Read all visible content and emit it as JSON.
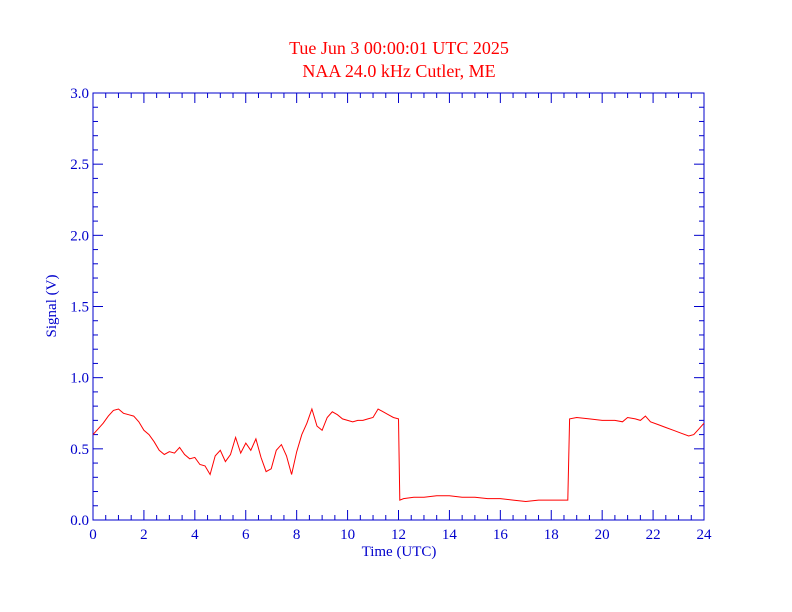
{
  "chart_data": {
    "type": "line",
    "title": "Tue Jun 3 00:00:01 UTC 2025",
    "subtitle": "NAA 24.0 kHz Cutler, ME",
    "xlabel": "Time (UTC)",
    "ylabel": "Signal (V)",
    "xlim": [
      0,
      24
    ],
    "ylim": [
      0,
      3.0
    ],
    "x_ticks": [
      0,
      2,
      4,
      6,
      8,
      10,
      12,
      14,
      16,
      18,
      20,
      22,
      24
    ],
    "x_tick_labels": [
      "0",
      "2",
      "4",
      "6",
      "8",
      "10",
      "12",
      "14",
      "16",
      "18",
      "20",
      "22",
      "24"
    ],
    "y_ticks": [
      0,
      0.5,
      1.0,
      1.5,
      2.0,
      2.5,
      3.0
    ],
    "y_tick_labels": [
      "0.0",
      "0.5",
      "1.0",
      "1.5",
      "2.0",
      "2.5",
      "3.0"
    ],
    "grid": false,
    "series": [
      {
        "color": "#ff0000",
        "x": [
          0.0,
          0.2,
          0.4,
          0.6,
          0.8,
          1.0,
          1.2,
          1.4,
          1.6,
          1.8,
          2.0,
          2.2,
          2.4,
          2.6,
          2.8,
          3.0,
          3.2,
          3.4,
          3.6,
          3.8,
          4.0,
          4.2,
          4.4,
          4.6,
          4.8,
          5.0,
          5.2,
          5.4,
          5.6,
          5.8,
          6.0,
          6.2,
          6.4,
          6.6,
          6.8,
          7.0,
          7.2,
          7.4,
          7.6,
          7.8,
          8.0,
          8.2,
          8.4,
          8.6,
          8.8,
          9.0,
          9.2,
          9.4,
          9.6,
          9.8,
          10.0,
          10.2,
          10.4,
          10.6,
          10.8,
          11.0,
          11.2,
          11.4,
          11.6,
          11.8,
          12.0,
          12.05,
          12.2,
          12.6,
          13.0,
          13.5,
          14.0,
          14.5,
          15.0,
          15.5,
          16.0,
          16.5,
          17.0,
          17.5,
          18.0,
          18.5,
          18.65,
          18.72,
          19.0,
          19.5,
          20.0,
          20.5,
          20.8,
          21.0,
          21.3,
          21.5,
          21.7,
          21.9,
          22.2,
          22.5,
          22.8,
          23.1,
          23.4,
          23.6,
          23.8,
          24.0
        ],
        "y": [
          0.6,
          0.64,
          0.68,
          0.73,
          0.77,
          0.78,
          0.75,
          0.74,
          0.73,
          0.69,
          0.63,
          0.6,
          0.55,
          0.49,
          0.46,
          0.48,
          0.47,
          0.51,
          0.46,
          0.43,
          0.44,
          0.39,
          0.38,
          0.32,
          0.45,
          0.49,
          0.41,
          0.46,
          0.58,
          0.47,
          0.54,
          0.49,
          0.57,
          0.44,
          0.34,
          0.36,
          0.49,
          0.53,
          0.45,
          0.32,
          0.48,
          0.6,
          0.68,
          0.78,
          0.66,
          0.63,
          0.72,
          0.76,
          0.74,
          0.71,
          0.7,
          0.69,
          0.7,
          0.7,
          0.71,
          0.72,
          0.78,
          0.76,
          0.74,
          0.72,
          0.71,
          0.14,
          0.15,
          0.16,
          0.16,
          0.17,
          0.17,
          0.16,
          0.16,
          0.15,
          0.15,
          0.14,
          0.13,
          0.14,
          0.14,
          0.14,
          0.14,
          0.71,
          0.72,
          0.71,
          0.7,
          0.7,
          0.69,
          0.72,
          0.71,
          0.7,
          0.73,
          0.69,
          0.67,
          0.65,
          0.63,
          0.61,
          0.59,
          0.6,
          0.64,
          0.68
        ]
      }
    ]
  }
}
